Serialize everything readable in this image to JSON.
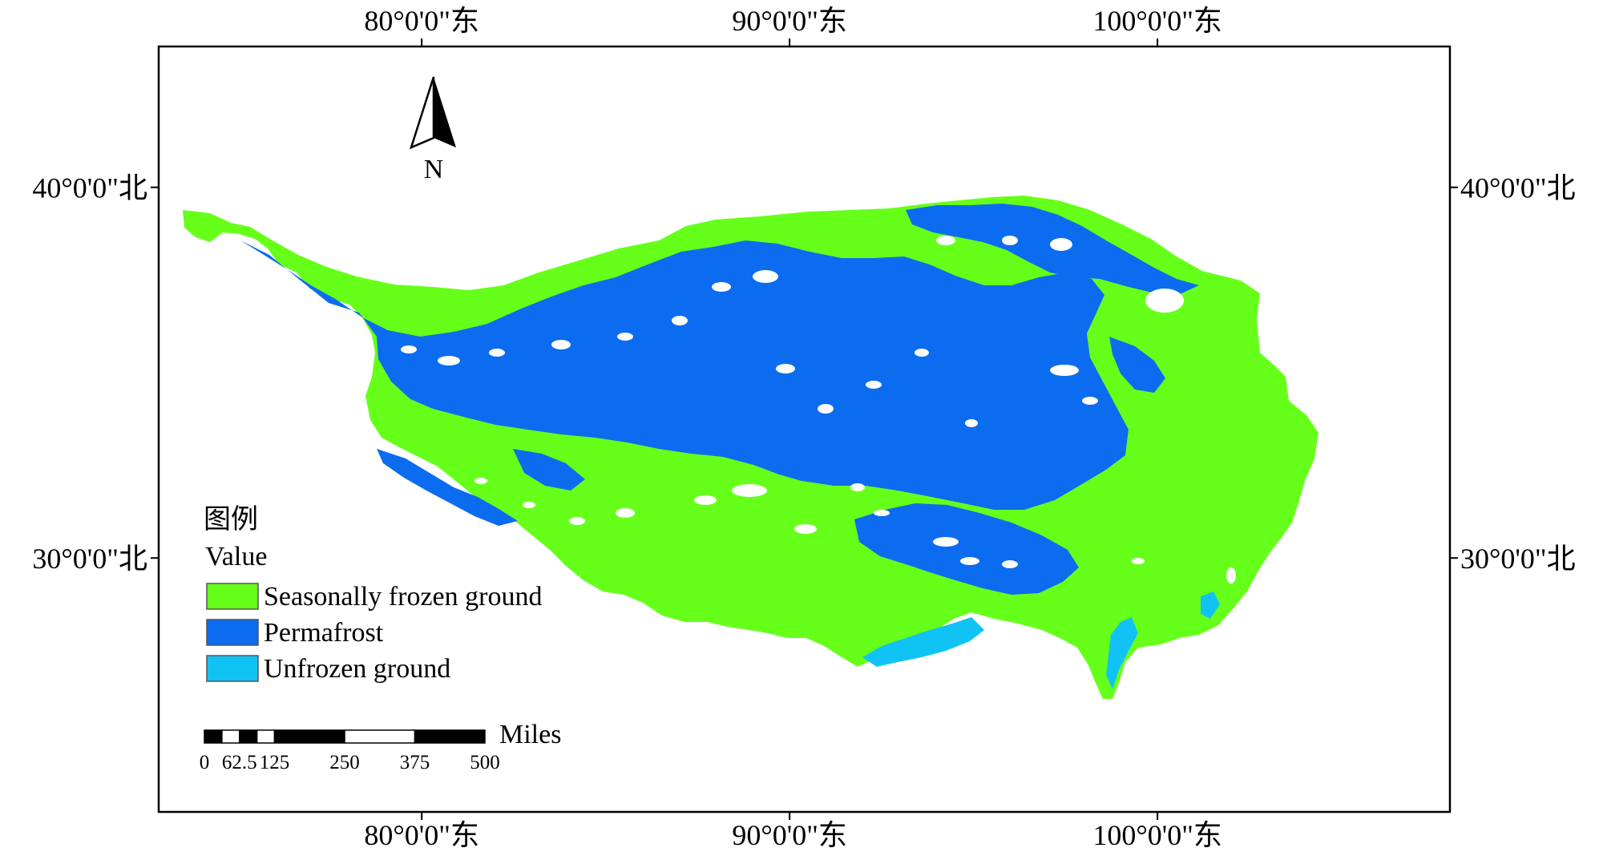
{
  "map": {
    "frame": {
      "lon_min": 72.85,
      "lon_max": 107.95,
      "lat_min": 23.15,
      "lat_max": 43.8
    },
    "graticule": {
      "longitudes": [
        {
          "value": 80,
          "label": "80°0'0\"东"
        },
        {
          "value": 90,
          "label": "90°0'0\"东"
        },
        {
          "value": 100,
          "label": "100°0'0\"东"
        }
      ],
      "latitudes": [
        {
          "value": 40,
          "label": "40°0'0\"北"
        },
        {
          "value": 30,
          "label": "30°0'0\"北"
        }
      ]
    },
    "north_arrow": {
      "letter": "N"
    },
    "legend": {
      "heading": "图例",
      "field": "Value",
      "items": [
        {
          "key": "seasonal",
          "label": "Seasonally frozen ground",
          "color": "#66ff1a"
        },
        {
          "key": "permafrost",
          "label": "Permafrost",
          "color": "#0c6cf0"
        },
        {
          "key": "unfrozen",
          "label": "Unfrozen ground",
          "color": "#11c3f5"
        }
      ]
    },
    "scale_bar": {
      "unit": "Miles",
      "ticks": [
        "0",
        "62.5",
        "125",
        "250",
        "375",
        "500"
      ]
    },
    "colors": {
      "frame": "#000000",
      "voids": "#ffffff"
    }
  }
}
